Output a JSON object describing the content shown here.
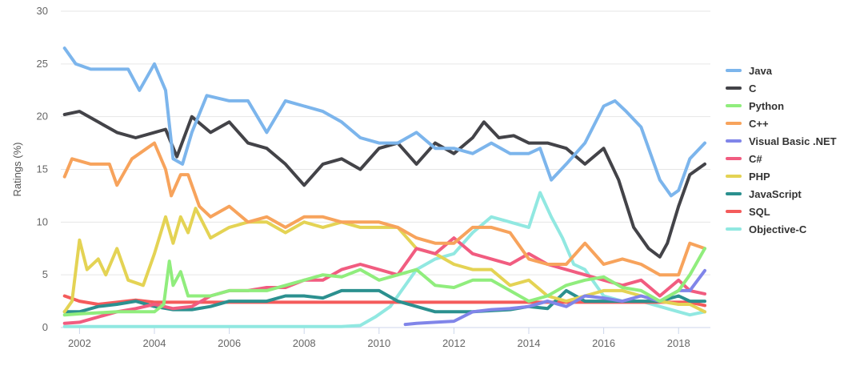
{
  "chart_data": {
    "type": "line",
    "title": "",
    "xlabel": "",
    "ylabel": "Ratings (%)",
    "xlim": [
      2001.5,
      2018.85
    ],
    "ylim": [
      0,
      30
    ],
    "x_ticks": [
      "2002",
      "2004",
      "2006",
      "2008",
      "2010",
      "2012",
      "2014",
      "2016",
      "2018"
    ],
    "y_ticks": [
      "0",
      "5",
      "10",
      "15",
      "20",
      "25",
      "30"
    ],
    "legend_position": "right",
    "grid": true,
    "series": [
      {
        "name": "Java",
        "color": "#7cb5ec",
        "x": [
          2001.6,
          2001.9,
          2002.3,
          2002.8,
          2003.3,
          2003.6,
          2004.0,
          2004.3,
          2004.5,
          2004.75,
          2005.0,
          2005.4,
          2006.0,
          2006.5,
          2007.0,
          2007.5,
          2008.0,
          2008.5,
          2009.0,
          2009.5,
          2010.0,
          2010.5,
          2011.0,
          2011.5,
          2012.0,
          2012.5,
          2013.0,
          2013.5,
          2014.0,
          2014.3,
          2014.6,
          2015.0,
          2015.5,
          2016.0,
          2016.3,
          2016.6,
          2017.0,
          2017.5,
          2017.8,
          2018.0,
          2018.3,
          2018.7
        ],
        "y": [
          26.5,
          25.0,
          24.5,
          24.5,
          24.5,
          22.5,
          25.0,
          22.5,
          16.0,
          15.5,
          18.5,
          22.0,
          21.5,
          21.5,
          18.5,
          21.5,
          21.0,
          20.5,
          19.5,
          18.0,
          17.5,
          17.5,
          18.5,
          17.0,
          17.0,
          16.5,
          17.5,
          16.5,
          16.5,
          17.0,
          14.0,
          15.5,
          17.5,
          21.0,
          21.5,
          20.5,
          19.0,
          14.0,
          12.5,
          13.0,
          16.0,
          17.5
        ]
      },
      {
        "name": "C",
        "color": "#434348",
        "x": [
          2001.6,
          2002.0,
          2002.5,
          2003.0,
          2003.5,
          2004.0,
          2004.3,
          2004.6,
          2005.0,
          2005.5,
          2006.0,
          2006.5,
          2007.0,
          2007.5,
          2008.0,
          2008.5,
          2009.0,
          2009.5,
          2010.0,
          2010.5,
          2011.0,
          2011.5,
          2012.0,
          2012.5,
          2012.8,
          2013.2,
          2013.6,
          2014.0,
          2014.5,
          2015.0,
          2015.5,
          2016.0,
          2016.4,
          2016.8,
          2017.2,
          2017.5,
          2017.7,
          2018.0,
          2018.3,
          2018.7
        ],
        "y": [
          20.2,
          20.5,
          19.5,
          18.5,
          18.0,
          18.5,
          18.8,
          16.2,
          20.0,
          18.5,
          19.5,
          17.5,
          17.0,
          15.5,
          13.5,
          15.5,
          16.0,
          15.0,
          17.0,
          17.5,
          15.5,
          17.5,
          16.5,
          18.0,
          19.5,
          18.0,
          18.2,
          17.5,
          17.5,
          17.0,
          15.5,
          17.0,
          14.0,
          9.5,
          7.5,
          6.7,
          8.0,
          11.5,
          14.5,
          15.5
        ]
      },
      {
        "name": "Python",
        "color": "#90ed7d",
        "x": [
          2001.6,
          2002.0,
          2003.0,
          2004.0,
          2004.25,
          2004.4,
          2004.5,
          2004.7,
          2004.9,
          2005.5,
          2006.0,
          2007.0,
          2008.0,
          2008.5,
          2009.0,
          2009.5,
          2010.0,
          2010.5,
          2011.0,
          2011.5,
          2012.0,
          2012.5,
          2013.0,
          2013.5,
          2014.0,
          2014.5,
          2015.0,
          2015.5,
          2016.0,
          2016.5,
          2017.0,
          2017.5,
          2018.0,
          2018.3,
          2018.7
        ],
        "y": [
          1.2,
          1.3,
          1.5,
          1.5,
          2.2,
          6.3,
          4.0,
          5.3,
          3.0,
          3.0,
          3.5,
          3.5,
          4.5,
          5.0,
          4.8,
          5.5,
          4.5,
          5.0,
          5.5,
          4.0,
          3.8,
          4.5,
          4.5,
          3.5,
          2.5,
          3.0,
          4.0,
          4.5,
          4.8,
          3.8,
          3.5,
          2.5,
          3.5,
          5.0,
          7.5
        ]
      },
      {
        "name": "C++",
        "color": "#f7a35c",
        "x": [
          2001.6,
          2001.8,
          2002.3,
          2002.8,
          2003.0,
          2003.4,
          2003.8,
          2004.0,
          2004.3,
          2004.45,
          2004.7,
          2004.9,
          2005.2,
          2005.5,
          2006.0,
          2006.5,
          2007.0,
          2007.5,
          2008.0,
          2008.5,
          2009.0,
          2009.5,
          2010.0,
          2010.5,
          2011.0,
          2011.5,
          2012.0,
          2012.5,
          2013.0,
          2013.5,
          2014.0,
          2014.5,
          2015.0,
          2015.5,
          2016.0,
          2016.5,
          2017.0,
          2017.5,
          2018.0,
          2018.3,
          2018.7
        ],
        "y": [
          14.3,
          16.0,
          15.5,
          15.5,
          13.5,
          16.0,
          17.0,
          17.5,
          15.0,
          12.5,
          14.5,
          14.5,
          11.5,
          10.5,
          11.5,
          10.0,
          10.5,
          9.5,
          10.5,
          10.5,
          10.0,
          10.0,
          10.0,
          9.5,
          8.5,
          8.0,
          8.0,
          9.5,
          9.5,
          9.0,
          6.5,
          6.0,
          6.0,
          8.0,
          6.0,
          6.5,
          6.0,
          5.0,
          5.0,
          8.0,
          7.5
        ]
      },
      {
        "name": "Visual Basic .NET",
        "color": "#8085e9",
        "x": [
          2010.7,
          2011.0,
          2011.5,
          2012.0,
          2012.5,
          2013.0,
          2013.5,
          2014.0,
          2014.5,
          2015.0,
          2015.5,
          2016.0,
          2016.5,
          2017.0,
          2017.5,
          2018.0,
          2018.3,
          2018.7
        ],
        "y": [
          0.3,
          0.4,
          0.5,
          0.6,
          1.5,
          1.7,
          1.8,
          2.0,
          2.5,
          2.0,
          3.0,
          2.8,
          2.5,
          3.0,
          2.5,
          3.5,
          3.5,
          5.4
        ]
      },
      {
        "name": "C#",
        "color": "#f15c80",
        "x": [
          2001.6,
          2002.0,
          2002.5,
          2003.0,
          2003.5,
          2004.0,
          2004.5,
          2005.0,
          2005.5,
          2006.0,
          2006.5,
          2007.0,
          2007.5,
          2008.0,
          2008.5,
          2009.0,
          2009.5,
          2010.0,
          2010.5,
          2011.0,
          2011.5,
          2012.0,
          2012.5,
          2013.0,
          2013.5,
          2014.0,
          2014.5,
          2015.0,
          2015.5,
          2016.0,
          2016.5,
          2017.0,
          2017.5,
          2018.0,
          2018.3,
          2018.7
        ],
        "y": [
          0.4,
          0.5,
          1.0,
          1.5,
          1.8,
          2.2,
          1.8,
          2.0,
          3.0,
          3.5,
          3.5,
          3.8,
          3.8,
          4.5,
          4.5,
          5.5,
          6.0,
          5.5,
          5.0,
          7.5,
          7.0,
          8.5,
          7.0,
          6.5,
          6.0,
          7.0,
          6.0,
          5.5,
          5.0,
          4.5,
          4.0,
          4.5,
          3.0,
          4.5,
          3.5,
          3.2
        ]
      },
      {
        "name": "PHP",
        "color": "#e4d354",
        "x": [
          2001.6,
          2001.8,
          2002.0,
          2002.2,
          2002.5,
          2002.7,
          2003.0,
          2003.3,
          2003.7,
          2004.0,
          2004.3,
          2004.5,
          2004.7,
          2004.9,
          2005.1,
          2005.5,
          2006.0,
          2006.5,
          2007.0,
          2007.5,
          2008.0,
          2008.5,
          2009.0,
          2009.5,
          2010.0,
          2010.5,
          2011.0,
          2011.5,
          2012.0,
          2012.5,
          2013.0,
          2013.5,
          2014.0,
          2014.5,
          2015.0,
          2015.5,
          2016.0,
          2016.5,
          2017.0,
          2017.5,
          2018.0,
          2018.3,
          2018.7
        ],
        "y": [
          1.5,
          2.5,
          8.3,
          5.5,
          6.5,
          5.0,
          7.5,
          4.5,
          4.0,
          7.0,
          10.5,
          8.0,
          10.5,
          9.0,
          11.3,
          8.5,
          9.5,
          10.0,
          10.0,
          9.0,
          10.0,
          9.5,
          10.0,
          9.5,
          9.5,
          9.5,
          7.5,
          7.0,
          6.0,
          5.5,
          5.5,
          4.0,
          4.5,
          3.0,
          2.5,
          3.0,
          3.5,
          3.5,
          3.0,
          2.5,
          2.2,
          2.2,
          1.5
        ]
      },
      {
        "name": "JavaScript",
        "color": "#2b908f",
        "x": [
          2001.6,
          2002.0,
          2002.5,
          2003.0,
          2003.5,
          2004.0,
          2004.5,
          2005.0,
          2005.5,
          2006.0,
          2006.5,
          2007.0,
          2007.5,
          2008.0,
          2008.5,
          2009.0,
          2009.5,
          2010.0,
          2010.5,
          2011.0,
          2011.5,
          2012.0,
          2012.5,
          2013.0,
          2013.5,
          2014.0,
          2014.5,
          2015.0,
          2015.5,
          2016.0,
          2016.5,
          2017.0,
          2017.5,
          2018.0,
          2018.3,
          2018.7
        ],
        "y": [
          1.5,
          1.5,
          2.0,
          2.2,
          2.5,
          2.0,
          1.7,
          1.7,
          2.0,
          2.5,
          2.5,
          2.5,
          3.0,
          3.0,
          2.8,
          3.5,
          3.5,
          3.5,
          2.5,
          2.0,
          1.5,
          1.5,
          1.5,
          1.6,
          1.7,
          2.0,
          1.8,
          3.5,
          2.5,
          2.5,
          2.5,
          2.5,
          2.5,
          3.0,
          2.5,
          2.5
        ]
      },
      {
        "name": "SQL",
        "color": "#f45b5b",
        "x": [
          2001.6,
          2002.0,
          2002.5,
          2003.0,
          2003.5,
          2004.0,
          2018.0,
          2018.3,
          2018.7
        ],
        "y": [
          3.0,
          2.5,
          2.2,
          2.4,
          2.6,
          2.4,
          2.4,
          2.4,
          2.1
        ]
      },
      {
        "name": "Objective-C",
        "color": "#91e8e1",
        "x": [
          2001.6,
          2009.0,
          2009.5,
          2009.9,
          2010.3,
          2010.6,
          2011.0,
          2011.5,
          2012.0,
          2012.5,
          2013.0,
          2013.5,
          2014.0,
          2014.3,
          2014.6,
          2014.9,
          2015.2,
          2015.5,
          2016.0,
          2016.5,
          2017.0,
          2017.5,
          2018.0,
          2018.3,
          2018.7
        ],
        "y": [
          0.1,
          0.1,
          0.2,
          1.0,
          2.0,
          3.5,
          5.5,
          6.5,
          7.0,
          9.0,
          10.5,
          10.0,
          9.5,
          12.8,
          10.5,
          8.5,
          6.0,
          5.5,
          3.0,
          2.5,
          2.5,
          2.0,
          1.5,
          1.2,
          1.5
        ]
      }
    ]
  }
}
